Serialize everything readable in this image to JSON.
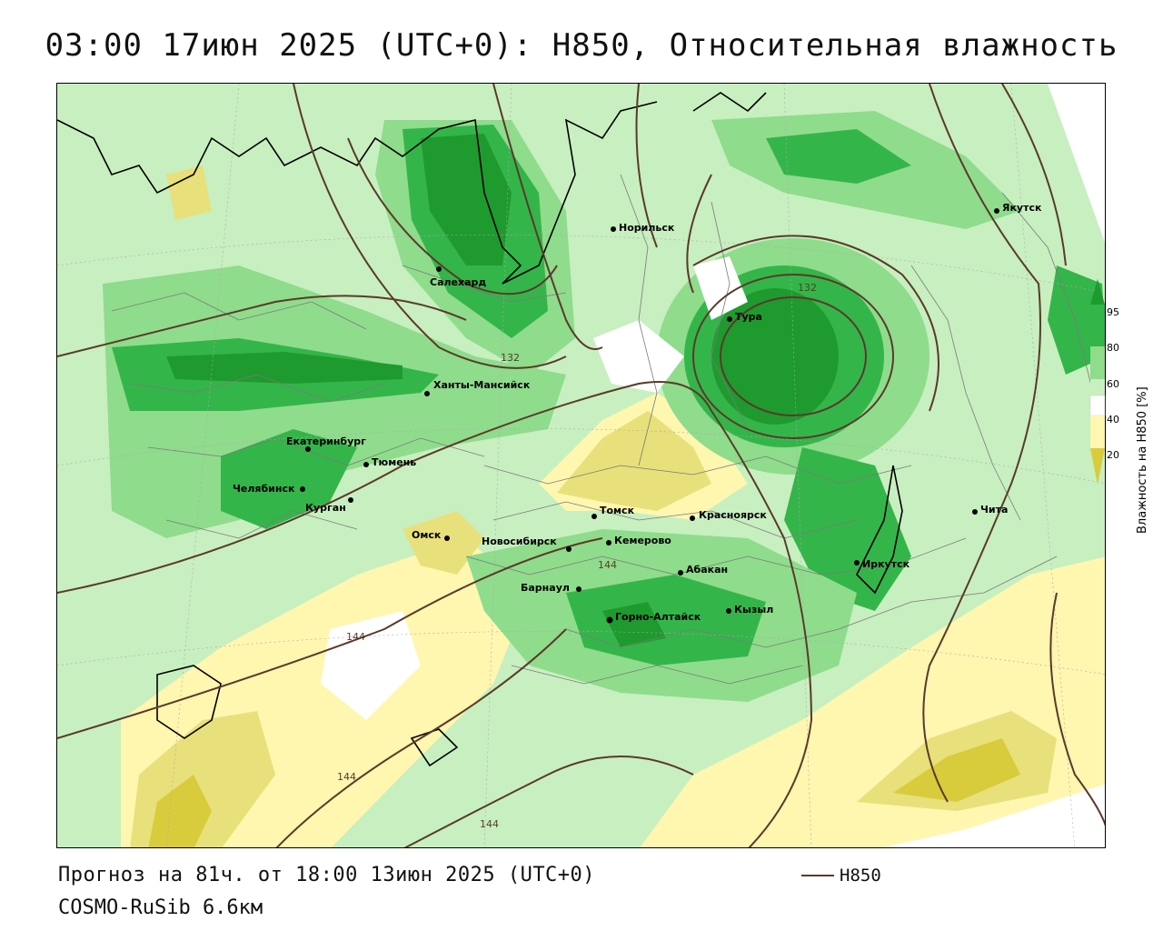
{
  "title": "03:00 17июн 2025 (UTC+0): H850, Относительная влажность",
  "footer": {
    "forecast": "Прогноз на 81ч. от 18:00 13июн 2025 (UTC+0)",
    "model": "COSMO-RuSib 6.6км",
    "series_label": "H850"
  },
  "legend": {
    "title": "Влажность на H850 [%]",
    "ticks": [
      "95",
      "80",
      "60",
      "40",
      "20"
    ],
    "colors": [
      "#1f9a2e",
      "#34b54a",
      "#8fdc8c",
      "#ffffff",
      "#fff6b0",
      "#e8e07a",
      "#d8cc3c"
    ]
  },
  "colors": {
    "contour": "#5a3a2a",
    "coast": "#000000",
    "border": "#7a7a7a",
    "humid_high": "#1f9a2e",
    "humid_mid": "#34b54a",
    "humid_low": "#8fdc8c",
    "humid_lite": "#c8efc0",
    "dry_1": "#fff6b0",
    "dry_2": "#e8e07a",
    "dry_3": "#d8cc3c"
  },
  "contour_labels": [
    "132",
    "132",
    "144",
    "144",
    "144",
    "144"
  ],
  "cities": [
    {
      "name": "Салехард"
    },
    {
      "name": "Норильск"
    },
    {
      "name": "Якутск"
    },
    {
      "name": "Тура"
    },
    {
      "name": "Ханты-Мансийск"
    },
    {
      "name": "Екатеринбург"
    },
    {
      "name": "Тюмень"
    },
    {
      "name": "Челябинск"
    },
    {
      "name": "Курган"
    },
    {
      "name": "Омск"
    },
    {
      "name": "Томск"
    },
    {
      "name": "Новосибирск"
    },
    {
      "name": "Кемерово"
    },
    {
      "name": "Красноярск"
    },
    {
      "name": "Барнаул"
    },
    {
      "name": "Абакан"
    },
    {
      "name": "Горно-Алтайск"
    },
    {
      "name": "Кызыл"
    },
    {
      "name": "Иркутск"
    },
    {
      "name": "Чита"
    }
  ]
}
